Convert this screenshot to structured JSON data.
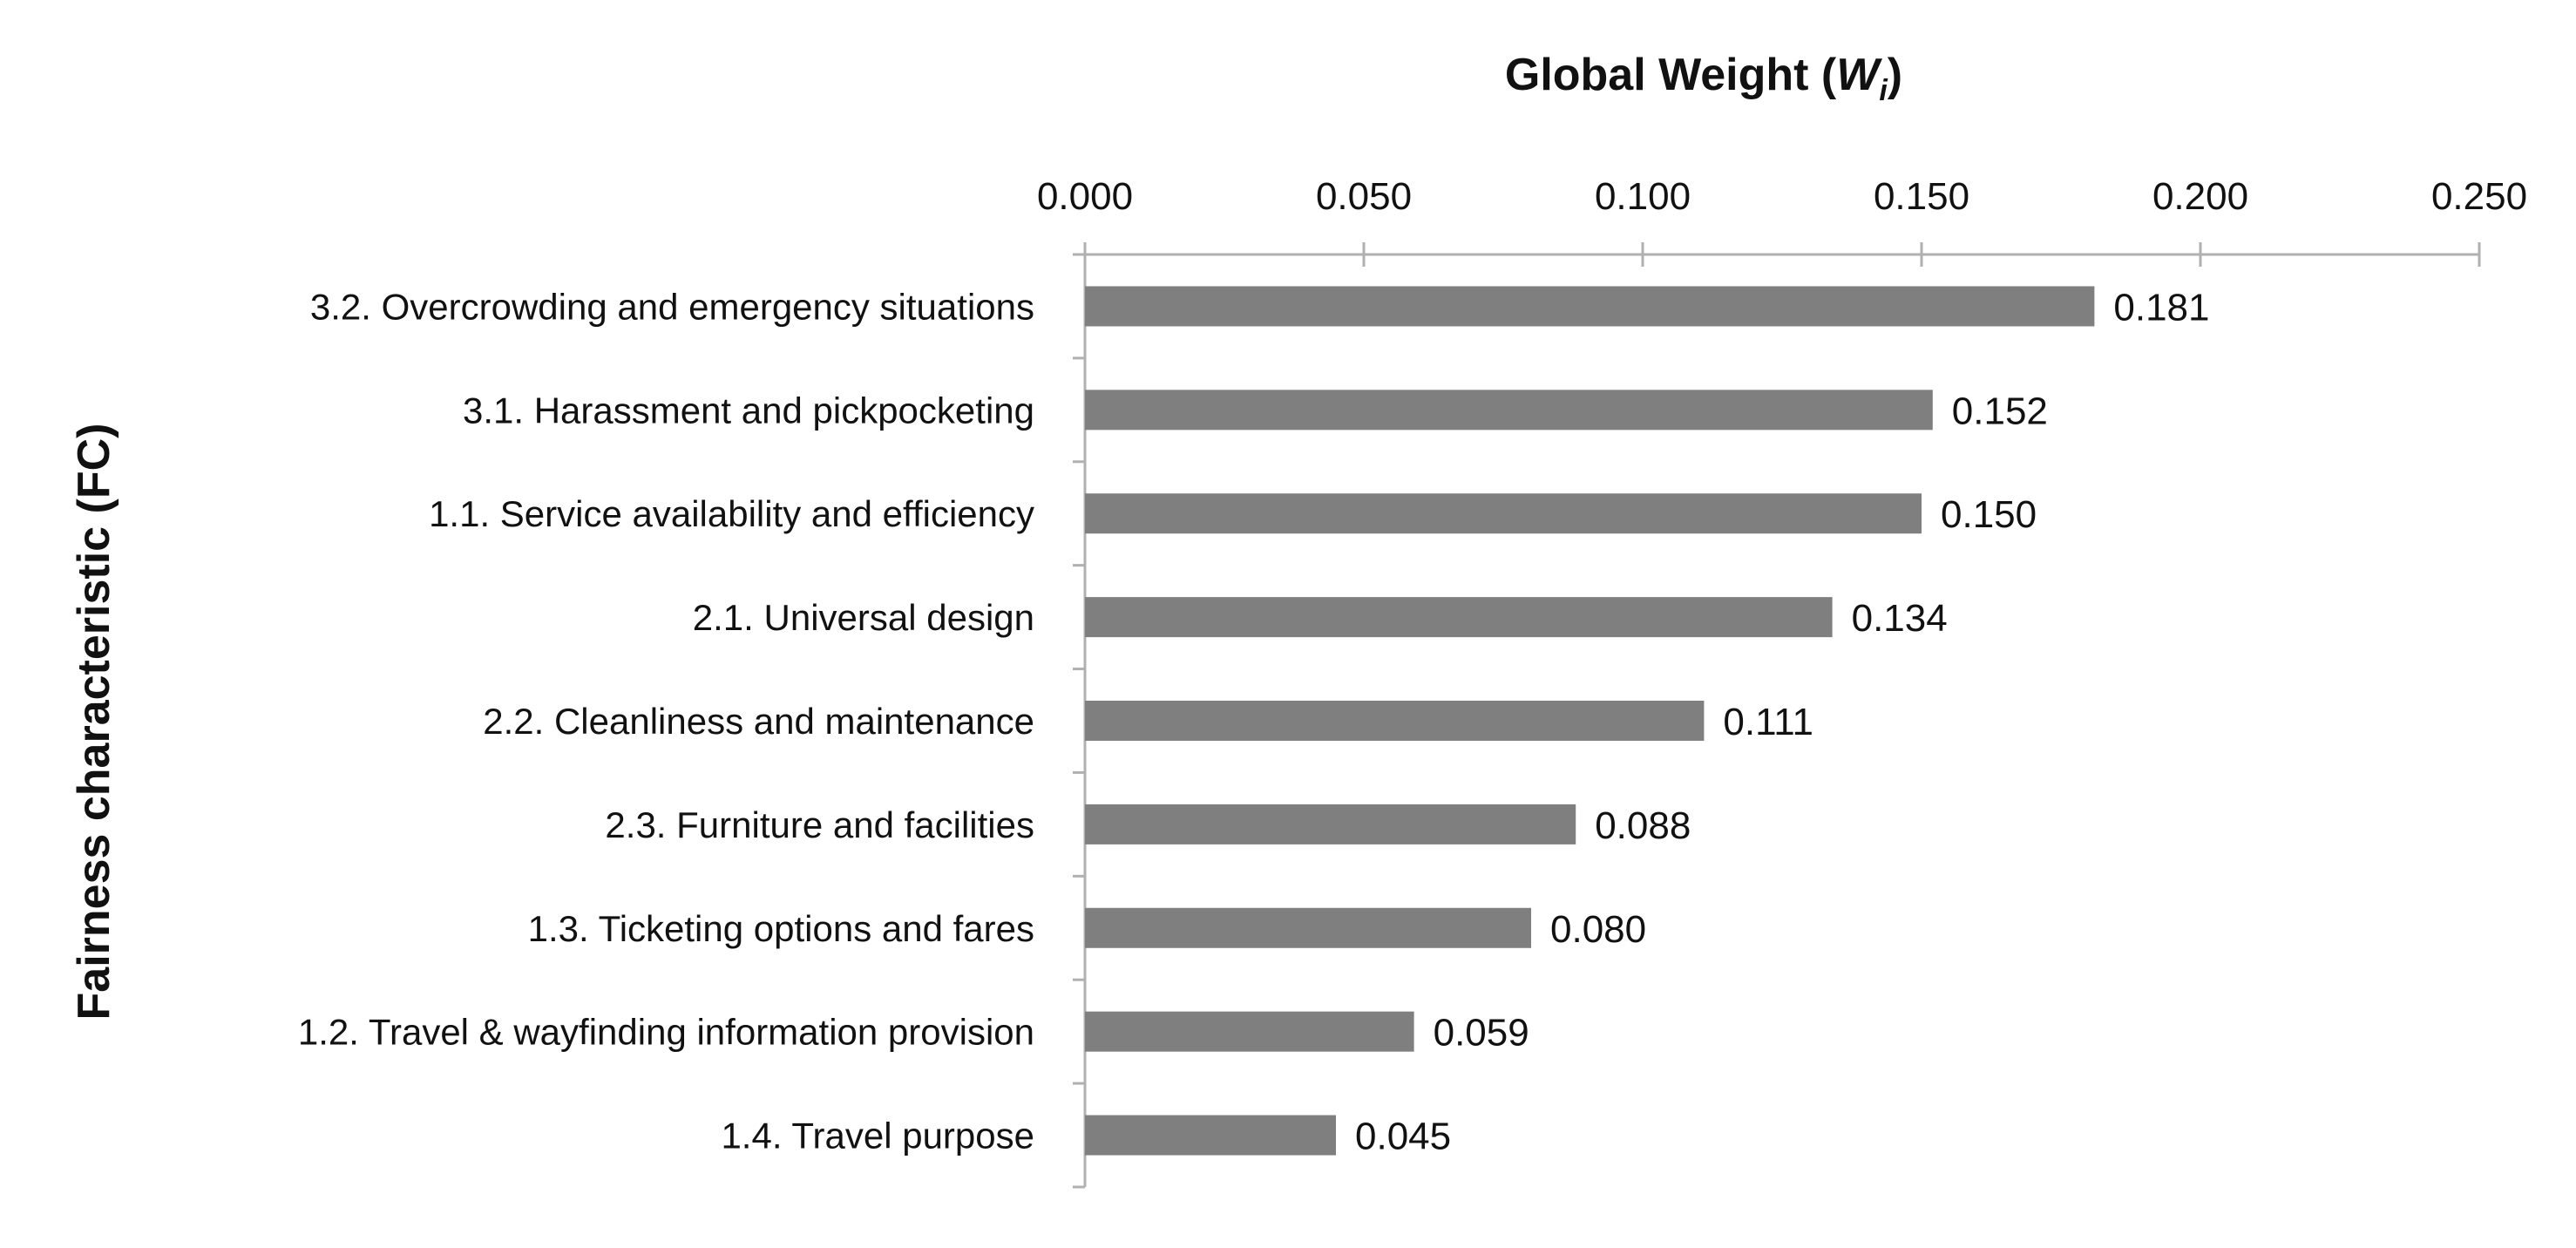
{
  "chart_data": {
    "type": "bar",
    "orientation": "horizontal",
    "title": "",
    "xlabel": "Global Weight",
    "xlabel_symbol": "W",
    "xlabel_subscript": "i",
    "ylabel": "Fairness characteristic (FC)",
    "x_axis_position": "top",
    "xlim": [
      0,
      0.25
    ],
    "x_ticks": [
      "0.000",
      "0.050",
      "0.100",
      "0.150",
      "0.200",
      "0.250"
    ],
    "grid": false,
    "legend": "none",
    "bar_color": "#7f7f7f",
    "categories": [
      "3.2. Overcrowding and emergency situations",
      "3.1. Harassment and pickpocketing",
      "1.1. Service availability and efficiency",
      "2.1. Universal design",
      "2.2. Cleanliness and maintenance",
      "2.3. Furniture and facilities",
      "1.3. Ticketing options and fares",
      "1.2. Travel & wayfinding information provision",
      "1.4. Travel purpose"
    ],
    "values": [
      0.181,
      0.152,
      0.15,
      0.134,
      0.111,
      0.088,
      0.08,
      0.059,
      0.045
    ],
    "data_labels": [
      "0.181",
      "0.152",
      "0.150",
      "0.134",
      "0.111",
      "0.088",
      "0.080",
      "0.059",
      "0.045"
    ]
  }
}
